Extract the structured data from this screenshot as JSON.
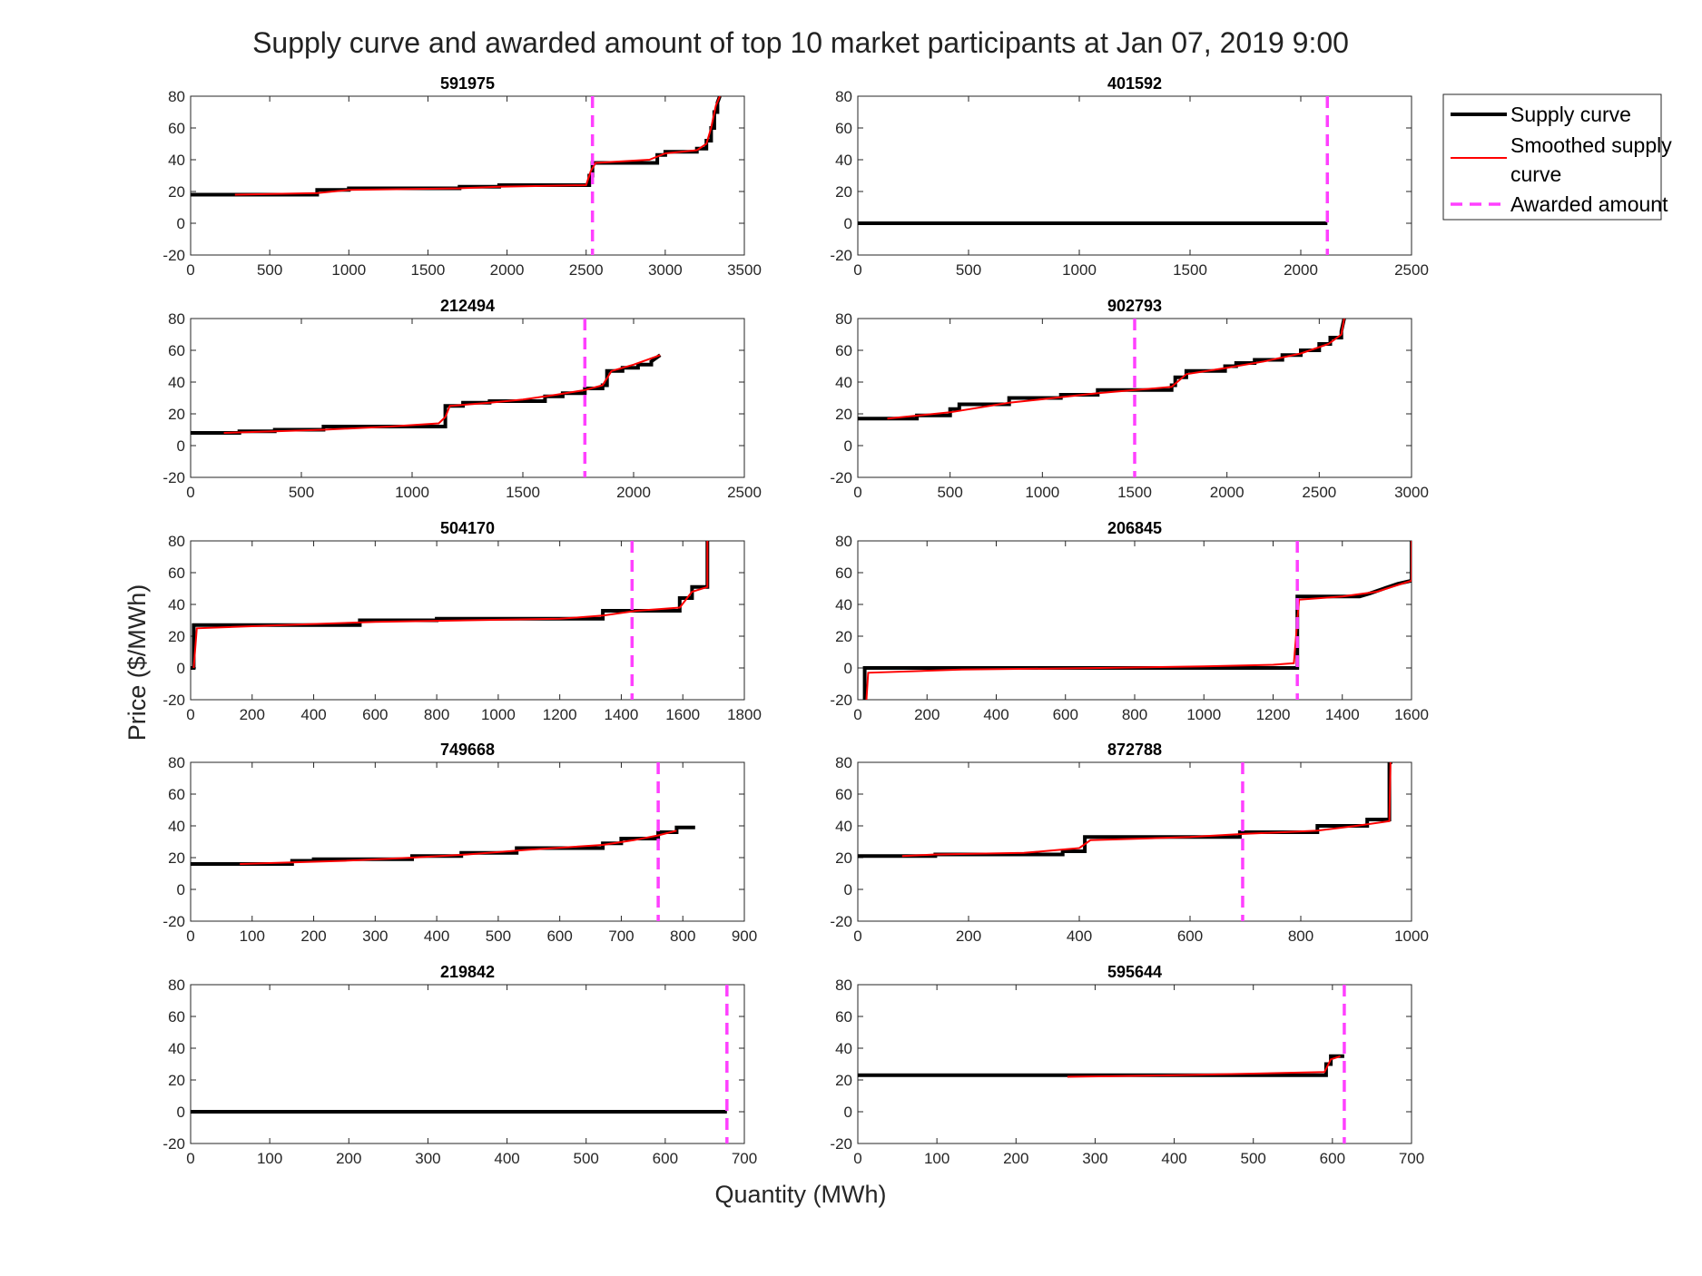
{
  "title": "Supply curve and awarded amount of top 10 market participants at Jan 07, 2019 9:00",
  "xlabel": "Quantity (MWh)",
  "ylabel": "Price ($/MWh)",
  "legend": {
    "placement": "top-right outside",
    "items": [
      {
        "label_lines": [
          "Supply curve"
        ],
        "color": "#000000",
        "style": "solid"
      },
      {
        "label_lines": [
          "Smoothed supply",
          "curve"
        ],
        "color": "#ff0000",
        "style": "solid"
      },
      {
        "label_lines": [
          "Awarded amount"
        ],
        "color": "#ff40ff",
        "style": "dashed"
      }
    ]
  },
  "colors": {
    "supply": "#000000",
    "smoothed": "#ff0000",
    "awarded": "#ff40ff"
  },
  "chart_data": [
    {
      "type": "line",
      "title": "591975",
      "xlim": [
        0,
        3500
      ],
      "xticks": [
        0,
        500,
        1000,
        1500,
        2000,
        2500,
        3000,
        3500
      ],
      "ylim": [
        -20,
        80
      ],
      "yticks": [
        -20,
        0,
        20,
        40,
        60,
        80
      ],
      "awarded": 2540,
      "series": [
        {
          "name": "Supply curve",
          "x": [
            0,
            800,
            800,
            1000,
            1000,
            1700,
            1700,
            1950,
            1950,
            2520,
            2520,
            2540,
            2540,
            2950,
            2950,
            3000,
            3000,
            3200,
            3200,
            3260,
            3260,
            3290,
            3290,
            3310,
            3310,
            3330,
            3330,
            3345
          ],
          "y": [
            18,
            18,
            21,
            21,
            22,
            22,
            23,
            23,
            24,
            24,
            30,
            30,
            38,
            38,
            43,
            43,
            45,
            45,
            47,
            47,
            52,
            52,
            60,
            60,
            70,
            70,
            76,
            80
          ]
        },
        {
          "name": "Smoothed supply curve",
          "x": [
            280,
            800,
            1000,
            1700,
            1950,
            2500,
            2530,
            2560,
            2900,
            3000,
            3200,
            3260,
            3290,
            3320,
            3345
          ],
          "y": [
            18,
            19,
            21,
            22,
            23,
            24,
            33,
            38,
            40,
            44,
            46,
            50,
            60,
            74,
            80
          ]
        }
      ]
    },
    {
      "type": "line",
      "title": "401592",
      "xlim": [
        0,
        2500
      ],
      "xticks": [
        0,
        500,
        1000,
        1500,
        2000,
        2500
      ],
      "ylim": [
        -20,
        80
      ],
      "yticks": [
        -20,
        0,
        20,
        40,
        60,
        80
      ],
      "awarded": 2120,
      "series": [
        {
          "name": "Supply curve",
          "x": [
            0,
            2120
          ],
          "y": [
            0,
            0
          ]
        }
      ]
    },
    {
      "type": "line",
      "title": "212494",
      "xlim": [
        0,
        2500
      ],
      "xticks": [
        0,
        500,
        1000,
        1500,
        2000,
        2500
      ],
      "ylim": [
        -20,
        80
      ],
      "yticks": [
        -20,
        0,
        20,
        40,
        60,
        80
      ],
      "awarded": 1780,
      "series": [
        {
          "name": "Supply curve",
          "x": [
            0,
            220,
            220,
            380,
            380,
            600,
            600,
            1150,
            1150,
            1230,
            1230,
            1350,
            1350,
            1600,
            1600,
            1680,
            1680,
            1780,
            1780,
            1860,
            1860,
            1880,
            1880,
            1950,
            1950,
            2020,
            2020,
            2080,
            2080,
            2120
          ],
          "y": [
            8,
            8,
            9,
            9,
            10,
            10,
            12,
            12,
            25,
            25,
            27,
            27,
            28,
            28,
            31,
            31,
            33,
            33,
            36,
            36,
            38,
            38,
            47,
            47,
            49,
            49,
            51,
            51,
            53,
            57
          ]
        },
        {
          "name": "Smoothed supply curve",
          "x": [
            150,
            380,
            600,
            900,
            1120,
            1150,
            1170,
            1350,
            1500,
            1650,
            1780,
            1860,
            1900,
            2000,
            2120
          ],
          "y": [
            8,
            9,
            10,
            12,
            14,
            18,
            25,
            27,
            29,
            32,
            35,
            38,
            47,
            51,
            57
          ]
        }
      ]
    },
    {
      "type": "line",
      "title": "902793",
      "xlim": [
        0,
        3000
      ],
      "xticks": [
        0,
        500,
        1000,
        1500,
        2000,
        2500,
        3000
      ],
      "ylim": [
        -20,
        80
      ],
      "yticks": [
        -20,
        0,
        20,
        40,
        60,
        80
      ],
      "awarded": 1500,
      "series": [
        {
          "name": "Supply curve",
          "x": [
            0,
            320,
            320,
            500,
            500,
            550,
            550,
            820,
            820,
            1100,
            1100,
            1300,
            1300,
            1700,
            1700,
            1720,
            1720,
            1780,
            1780,
            1990,
            1990,
            2050,
            2050,
            2150,
            2150,
            2300,
            2300,
            2400,
            2400,
            2500,
            2500,
            2560,
            2560,
            2620,
            2620,
            2635
          ],
          "y": [
            17,
            17,
            19,
            19,
            23,
            23,
            26,
            26,
            30,
            30,
            32,
            32,
            35,
            35,
            38,
            38,
            43,
            43,
            47,
            47,
            50,
            50,
            52,
            52,
            54,
            54,
            57,
            57,
            60,
            60,
            64,
            64,
            68,
            68,
            72,
            80
          ]
        },
        {
          "name": "Smoothed supply curve",
          "x": [
            160,
            500,
            820,
            1300,
            1500,
            1700,
            1780,
            2000,
            2200,
            2400,
            2550,
            2620,
            2635
          ],
          "y": [
            17,
            21,
            27,
            33,
            35,
            37,
            45,
            49,
            53,
            58,
            64,
            70,
            80
          ]
        }
      ]
    },
    {
      "type": "line",
      "title": "504170",
      "xlim": [
        0,
        1800
      ],
      "xticks": [
        0,
        200,
        400,
        600,
        800,
        1000,
        1200,
        1400,
        1600,
        1800
      ],
      "ylim": [
        -20,
        80
      ],
      "yticks": [
        -20,
        0,
        20,
        40,
        60,
        80
      ],
      "awarded": 1435,
      "series": [
        {
          "name": "Supply curve",
          "x": [
            0,
            10,
            10,
            550,
            550,
            800,
            800,
            1340,
            1340,
            1590,
            1590,
            1630,
            1630,
            1680,
            1680
          ],
          "y": [
            0,
            0,
            27,
            27,
            30,
            30,
            31,
            31,
            36,
            36,
            44,
            44,
            51,
            51,
            80
          ]
        },
        {
          "name": "Smoothed supply curve",
          "x": [
            10,
            20,
            300,
            600,
            900,
            1200,
            1340,
            1450,
            1590,
            1630,
            1680,
            1680
          ],
          "y": [
            0,
            25,
            27,
            29,
            30,
            31,
            33,
            36,
            38,
            48,
            51,
            80
          ]
        }
      ]
    },
    {
      "type": "line",
      "title": "206845",
      "xlim": [
        0,
        1600
      ],
      "xticks": [
        0,
        200,
        400,
        600,
        800,
        1000,
        1200,
        1400,
        1600
      ],
      "ylim": [
        -20,
        80
      ],
      "yticks": [
        -20,
        0,
        20,
        40,
        60,
        80
      ],
      "awarded": 1270,
      "series": [
        {
          "name": "Supply curve",
          "x": [
            20,
            20,
            1270,
            1270,
            1450,
            1480,
            1520,
            1560,
            1600,
            1600
          ],
          "y": [
            -20,
            0,
            0,
            45,
            45,
            47,
            50,
            53,
            55,
            80
          ]
        },
        {
          "name": "Smoothed supply curve",
          "x": [
            25,
            30,
            300,
            700,
            1000,
            1200,
            1260,
            1275,
            1400,
            1500,
            1600,
            1600
          ],
          "y": [
            -20,
            -3,
            -1,
            0,
            1,
            2,
            3,
            43,
            45,
            48,
            55,
            80
          ]
        }
      ]
    },
    {
      "type": "line",
      "title": "749668",
      "xlim": [
        0,
        900
      ],
      "xticks": [
        0,
        100,
        200,
        300,
        400,
        500,
        600,
        700,
        800,
        900
      ],
      "ylim": [
        -20,
        80
      ],
      "yticks": [
        -20,
        0,
        20,
        40,
        60,
        80
      ],
      "awarded": 760,
      "series": [
        {
          "name": "Supply curve",
          "x": [
            0,
            165,
            165,
            200,
            200,
            360,
            360,
            440,
            440,
            530,
            530,
            670,
            670,
            700,
            700,
            760,
            760,
            790,
            790,
            820
          ],
          "y": [
            16,
            16,
            18,
            18,
            19,
            19,
            21,
            21,
            23,
            23,
            26,
            26,
            29,
            29,
            32,
            32,
            36,
            36,
            39,
            39
          ]
        },
        {
          "name": "Smoothed supply curve",
          "x": [
            80,
            165,
            250,
            360,
            450,
            550,
            670,
            720,
            760,
            790
          ],
          "y": [
            16,
            17,
            18,
            20,
            22,
            25,
            28,
            31,
            34,
            37
          ]
        }
      ]
    },
    {
      "type": "line",
      "title": "872788",
      "xlim": [
        0,
        1000
      ],
      "xticks": [
        0,
        200,
        400,
        600,
        800,
        1000
      ],
      "ylim": [
        -20,
        80
      ],
      "yticks": [
        -20,
        0,
        20,
        40,
        60,
        80
      ],
      "awarded": 695,
      "series": [
        {
          "name": "Supply curve",
          "x": [
            0,
            140,
            140,
            370,
            370,
            410,
            410,
            690,
            690,
            830,
            830,
            920,
            920,
            960,
            960,
            965
          ],
          "y": [
            21,
            21,
            22,
            22,
            24,
            24,
            33,
            33,
            36,
            36,
            40,
            40,
            44,
            44,
            80,
            80
          ]
        },
        {
          "name": "Smoothed supply curve",
          "x": [
            80,
            140,
            300,
            400,
            420,
            600,
            700,
            830,
            900,
            960,
            962
          ],
          "y": [
            21,
            22,
            23,
            26,
            31,
            33,
            35,
            37,
            40,
            43,
            80
          ]
        }
      ]
    },
    {
      "type": "line",
      "title": "219842",
      "xlim": [
        0,
        700
      ],
      "xticks": [
        0,
        100,
        200,
        300,
        400,
        500,
        600,
        700
      ],
      "ylim": [
        -20,
        80
      ],
      "yticks": [
        -20,
        0,
        20,
        40,
        60,
        80
      ],
      "awarded": 678,
      "series": [
        {
          "name": "Supply curve",
          "x": [
            0,
            678
          ],
          "y": [
            0,
            0
          ]
        }
      ]
    },
    {
      "type": "line",
      "title": "595644",
      "xlim": [
        0,
        700
      ],
      "xticks": [
        0,
        100,
        200,
        300,
        400,
        500,
        600,
        700
      ],
      "ylim": [
        -20,
        80
      ],
      "yticks": [
        -20,
        0,
        20,
        40,
        60,
        80
      ],
      "awarded": 615,
      "series": [
        {
          "name": "Supply curve",
          "x": [
            0,
            592,
            592,
            598,
            598,
            615
          ],
          "y": [
            23,
            23,
            30,
            30,
            35,
            35
          ]
        },
        {
          "name": "Smoothed supply curve",
          "x": [
            265,
            400,
            500,
            590,
            598,
            610
          ],
          "y": [
            22,
            23,
            24,
            25,
            33,
            35
          ]
        }
      ]
    }
  ]
}
